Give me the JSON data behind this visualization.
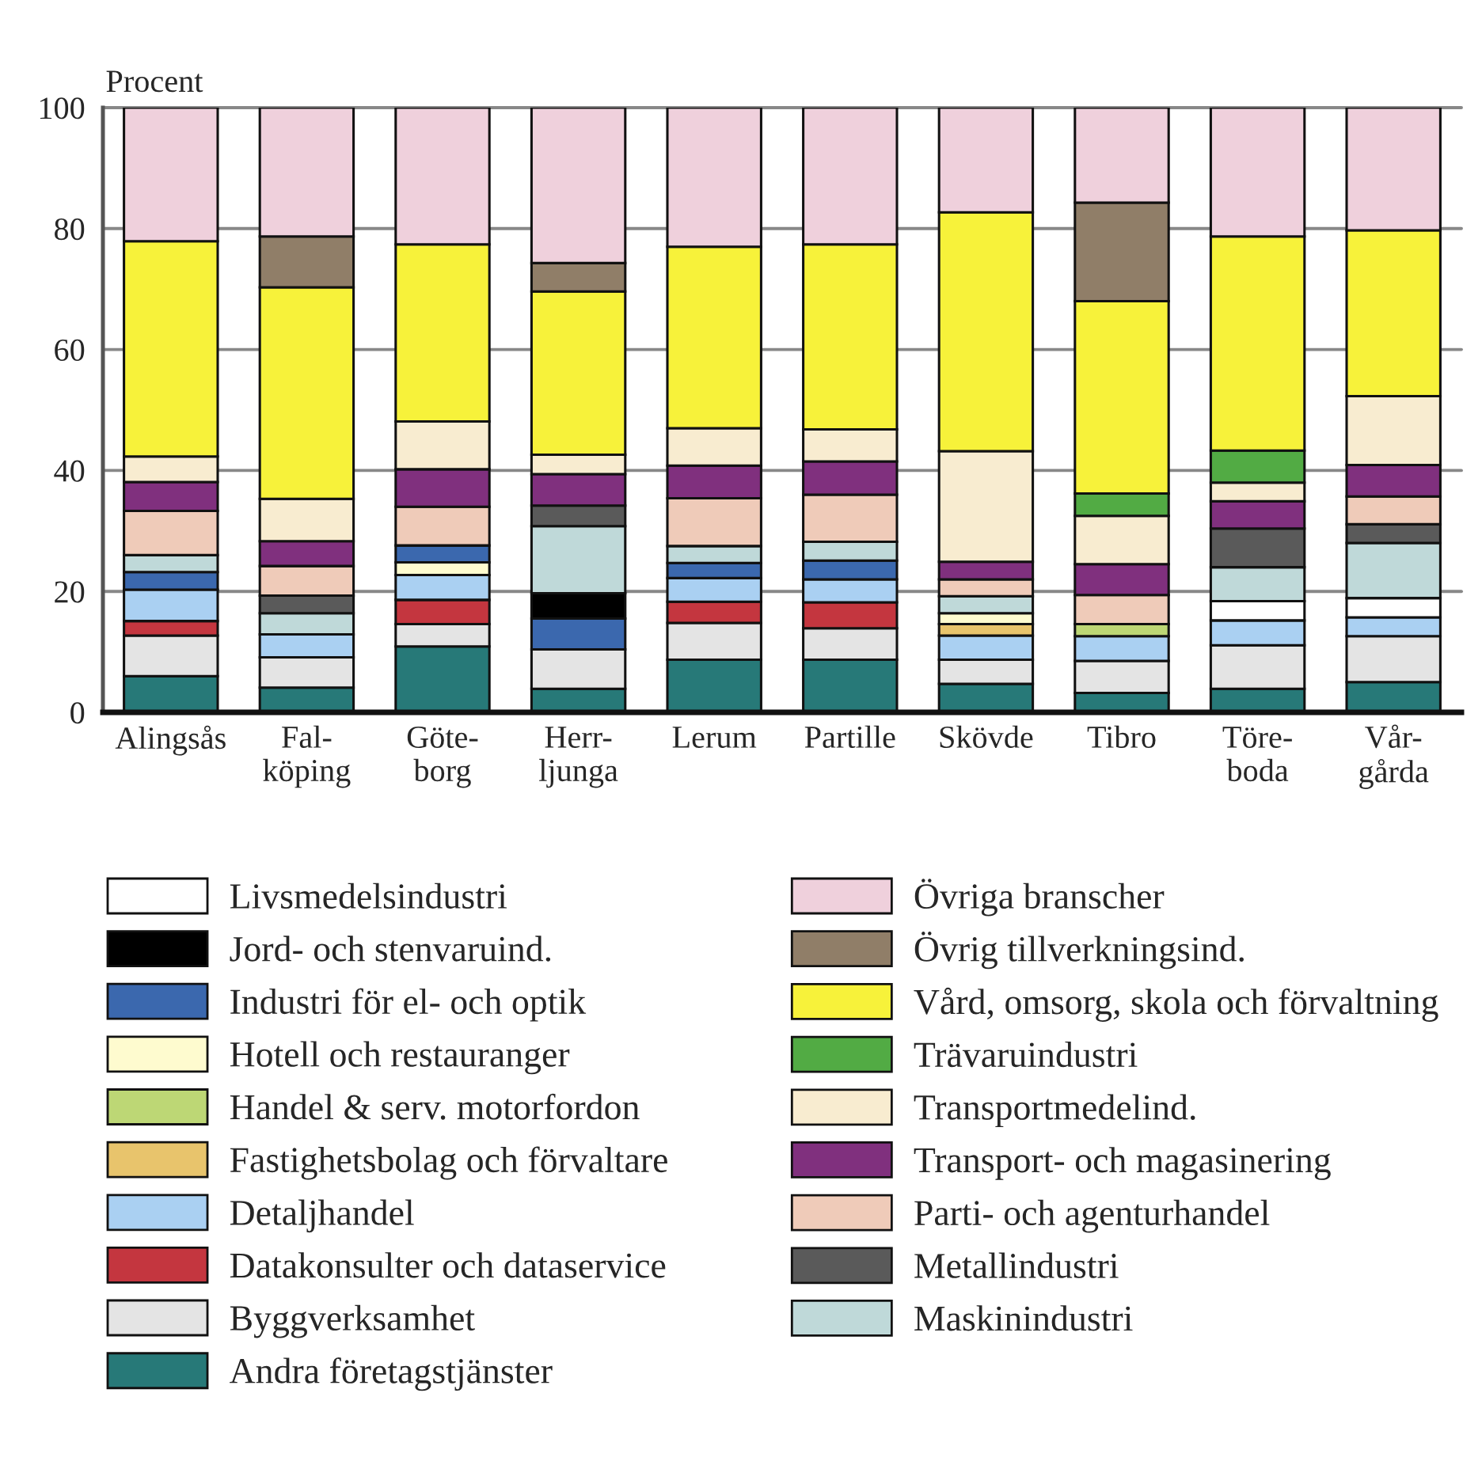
{
  "chart_data": {
    "type": "bar",
    "stacked": true,
    "ylabel": "Procent",
    "categories": [
      "Alingsås",
      "Fal-\nköping",
      "Göte-\nborg",
      "Herr-\nljunga",
      "Lerum",
      "Partille",
      "Skövde",
      "Tibro",
      "Töre-\nboda",
      "Vår-\ngårda"
    ],
    "series": [
      {
        "name": "Andra företagstjänster",
        "color": "#277978",
        "values": [
          6.0,
          4.1,
          10.9,
          3.9,
          8.7,
          8.7,
          4.7,
          3.2,
          3.9,
          5.0
        ]
      },
      {
        "name": "Byggverksamhet",
        "color": "#e4e4e4",
        "values": [
          6.7,
          5.0,
          3.7,
          6.5,
          6.1,
          5.2,
          4.0,
          5.3,
          7.2,
          7.6
        ]
      },
      {
        "name": "Datakonsulter och dataservice",
        "color": "#c4363f",
        "values": [
          2.4,
          null,
          4.0,
          null,
          3.5,
          4.3,
          null,
          null,
          null,
          null
        ]
      },
      {
        "name": "Detaljhandel",
        "color": "#aad0f2",
        "values": [
          5.2,
          3.8,
          4.1,
          null,
          3.9,
          3.8,
          4.0,
          4.1,
          4.1,
          3.1
        ]
      },
      {
        "name": "Fastighetsbolag och förvaltare",
        "color": "#e8c46c",
        "values": [
          null,
          null,
          null,
          null,
          null,
          null,
          1.9,
          null,
          null,
          null
        ]
      },
      {
        "name": "Handel & serv. motorfordon",
        "color": "#bdd775",
        "values": [
          null,
          null,
          null,
          null,
          null,
          null,
          null,
          2.0,
          null,
          null
        ]
      },
      {
        "name": "Hotell och restauranger",
        "color": "#fefbcf",
        "values": [
          null,
          null,
          2.1,
          null,
          null,
          null,
          1.8,
          null,
          null,
          null
        ]
      },
      {
        "name": "Industri för el- och optik",
        "color": "#3b68ae",
        "values": [
          2.9,
          null,
          2.8,
          5.1,
          2.5,
          3.1,
          null,
          null,
          null,
          null
        ]
      },
      {
        "name": "Jord- och stenvaruind.",
        "color": "#000000",
        "values": [
          null,
          null,
          null,
          4.2,
          null,
          null,
          null,
          null,
          null,
          null
        ]
      },
      {
        "name": "Livsmedelsindustri",
        "color": "#ffffff",
        "values": [
          null,
          null,
          null,
          null,
          null,
          null,
          null,
          null,
          3.2,
          3.2
        ]
      },
      {
        "name": "Maskinindustri",
        "color": "#bfd9d9",
        "values": [
          2.8,
          3.5,
          null,
          11.1,
          2.8,
          3.1,
          2.8,
          null,
          5.6,
          9.1
        ]
      },
      {
        "name": "Metallindustri",
        "color": "#5a5a5a",
        "values": [
          null,
          2.9,
          null,
          3.4,
          null,
          null,
          null,
          null,
          6.4,
          3.1
        ]
      },
      {
        "name": "Parti- och agenturhandel",
        "color": "#efcbb9",
        "values": [
          7.3,
          4.9,
          6.4,
          null,
          7.9,
          7.8,
          2.8,
          4.8,
          null,
          4.6
        ]
      },
      {
        "name": "Transport- och magasinering",
        "color": "#80307e",
        "values": [
          4.8,
          4.1,
          6.2,
          5.2,
          5.4,
          5.5,
          2.9,
          5.1,
          4.5,
          5.2
        ]
      },
      {
        "name": "Transportmedelind.",
        "color": "#f8ecd0",
        "values": [
          4.2,
          7.0,
          7.9,
          3.2,
          6.2,
          5.3,
          18.3,
          8.0,
          3.1,
          11.4
        ]
      },
      {
        "name": "Trävaruindustri",
        "color": "#52ab44",
        "values": [
          null,
          null,
          null,
          null,
          null,
          null,
          null,
          3.7,
          5.3,
          null
        ]
      },
      {
        "name": "Vård, omsorg, skola och förvaltning",
        "color": "#f7f23a",
        "values": [
          35.6,
          35.0,
          29.3,
          27.0,
          30.0,
          30.6,
          39.5,
          31.8,
          35.4,
          27.4
        ]
      },
      {
        "name": "Övrig tillverkningsind.",
        "color": "#907e68",
        "values": [
          null,
          8.4,
          null,
          4.7,
          null,
          null,
          null,
          16.3,
          null,
          null
        ]
      },
      {
        "name": "Övriga branscher",
        "color": "#efd0dc",
        "values": [
          22.1,
          21.3,
          22.6,
          25.7,
          23.0,
          22.6,
          17.3,
          15.7,
          21.3,
          20.3
        ]
      }
    ],
    "ylim": [
      0,
      100
    ],
    "yticks": [
      0,
      20,
      40,
      60,
      80,
      100
    ],
    "grid": "y",
    "legend": "bottom"
  }
}
